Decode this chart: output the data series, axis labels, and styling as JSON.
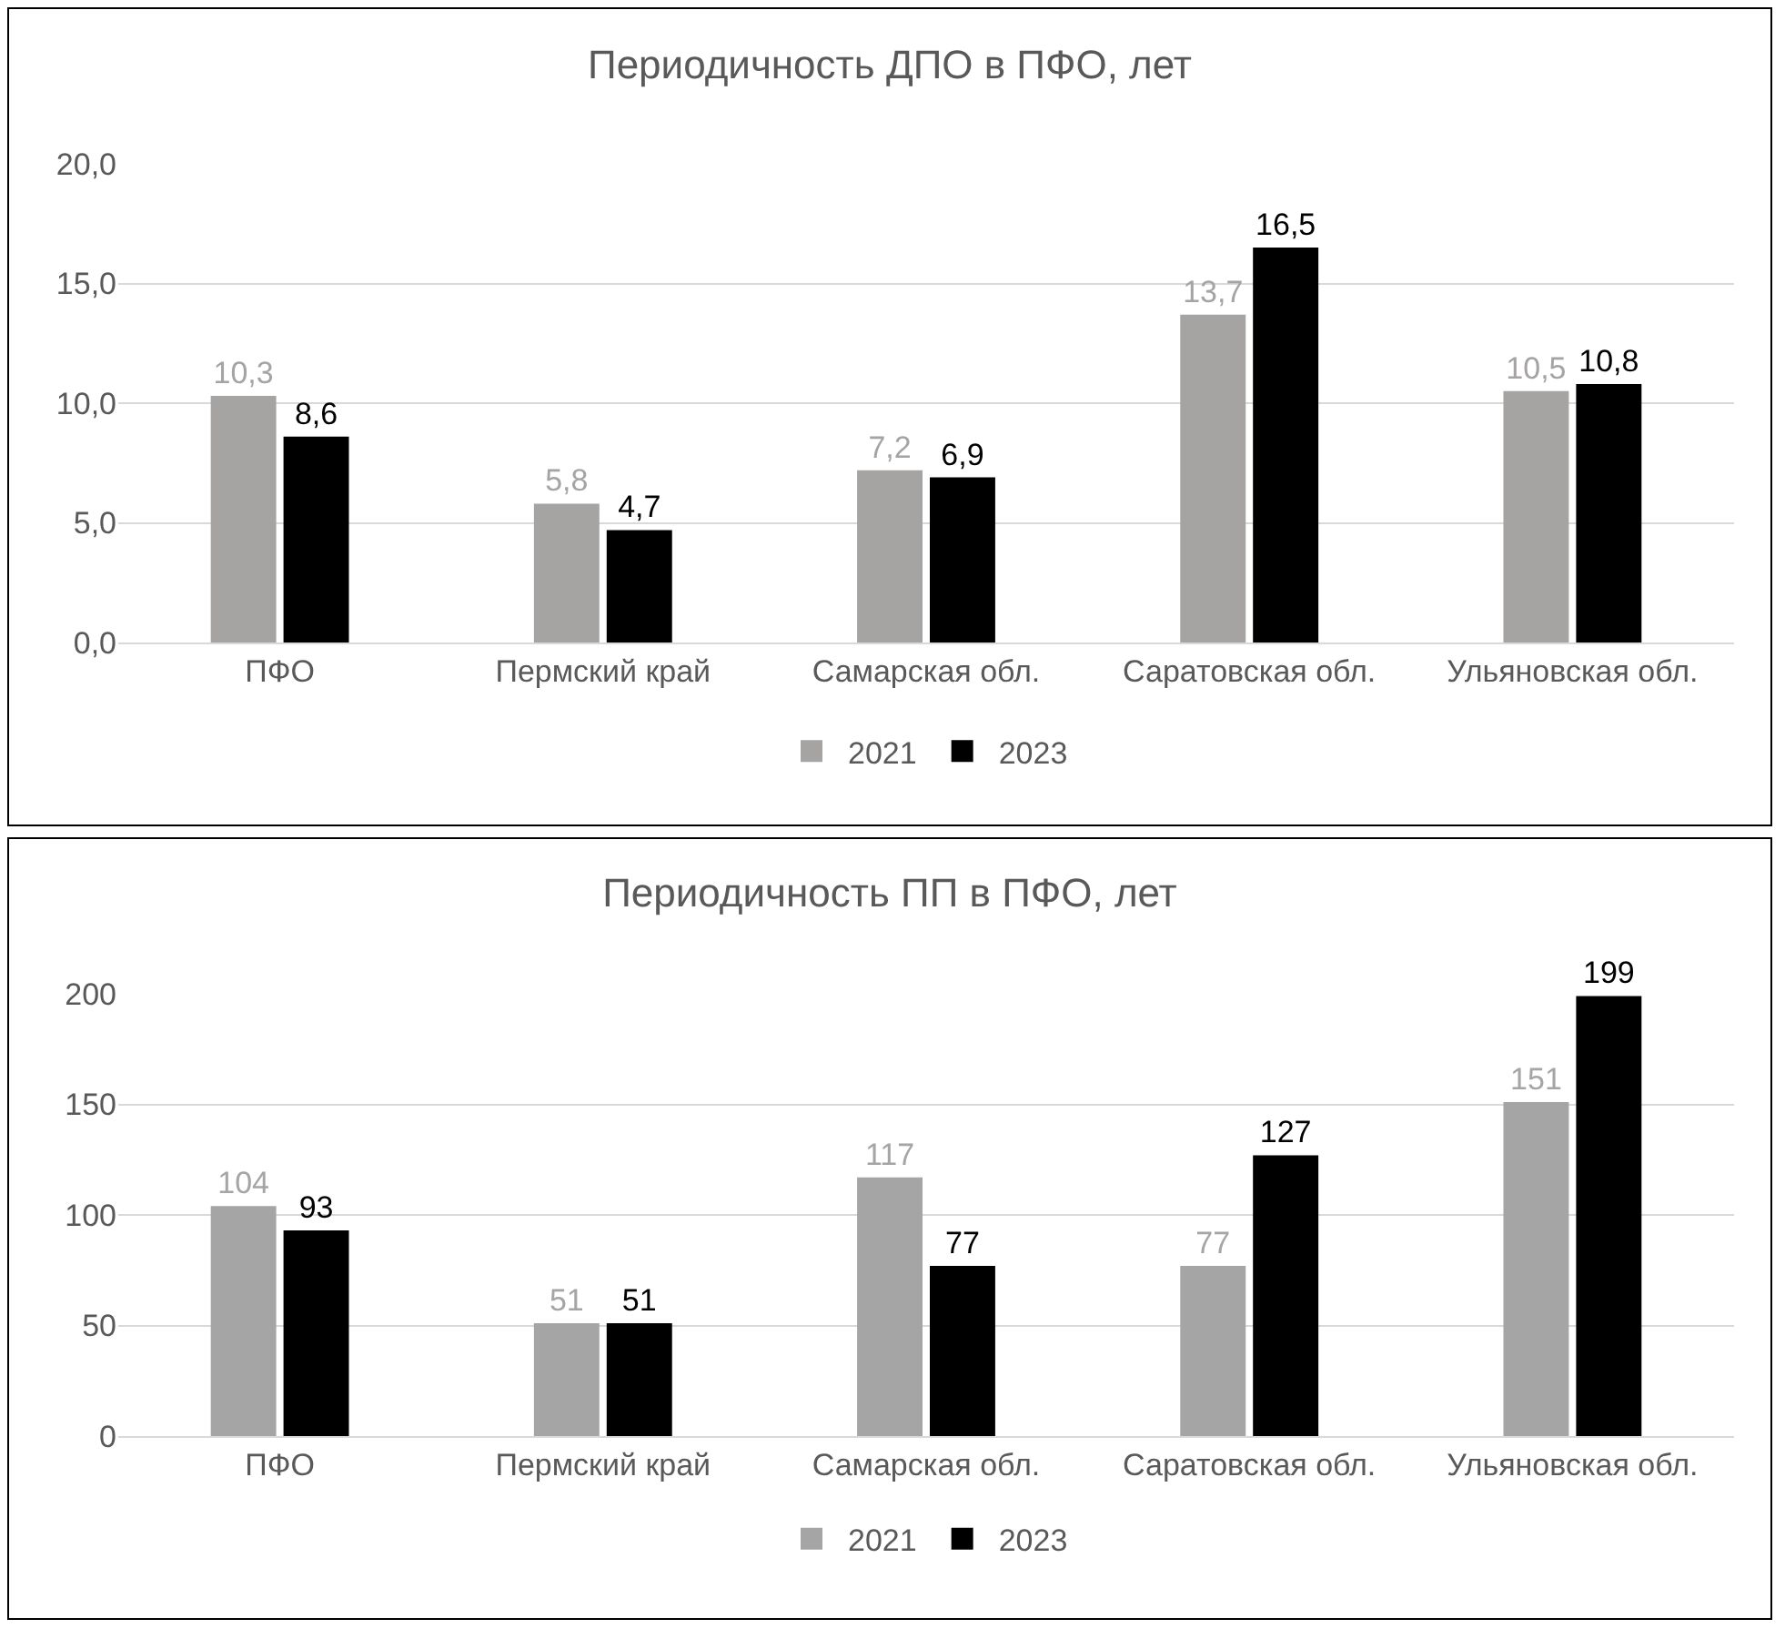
{
  "chart_data": [
    {
      "type": "bar",
      "title": "Периодичность ДПО в ПФО, лет",
      "categories": [
        "ПФО",
        "Пермский край",
        "Самарская обл.",
        "Саратовская обл.",
        "Ульяновская обл."
      ],
      "series": [
        {
          "name": "2021",
          "color": "#a6a3a3",
          "values": [
            10.3,
            5.8,
            7.2,
            13.7,
            10.5
          ],
          "value_labels": [
            "10,3",
            "5,8",
            "7,2",
            "13,7",
            "10,5"
          ]
        },
        {
          "name": "2023",
          "color": "#000000",
          "values": [
            8.6,
            4.7,
            6.9,
            16.5,
            10.8
          ],
          "value_labels": [
            "8,6",
            "4,7",
            "6,9",
            "16,5",
            "10,8"
          ]
        }
      ],
      "ylim": [
        0,
        20
      ],
      "yticks": [
        {
          "value": 0,
          "label": "0,0"
        },
        {
          "value": 5,
          "label": "5,0"
        },
        {
          "value": 10,
          "label": "10,0"
        },
        {
          "value": 15,
          "label": "15,0"
        },
        {
          "value": 20,
          "label": "20,0"
        }
      ],
      "grid": "y",
      "legend": "bottom"
    },
    {
      "type": "bar",
      "title": "Периодичность ПП в ПФО, лет",
      "categories": [
        "ПФО",
        "Пермский край",
        "Самарская обл.",
        "Саратовская обл.",
        "Ульяновская обл."
      ],
      "series": [
        {
          "name": "2021",
          "color": "#a5a5a5",
          "values": [
            104,
            51,
            117,
            77,
            151
          ]
        },
        {
          "name": "2023",
          "color": "#000000",
          "values": [
            93,
            51,
            77,
            127,
            199
          ]
        }
      ],
      "ylim": [
        0,
        200
      ],
      "yticks": [
        0,
        50,
        100,
        150,
        200
      ],
      "grid": "y",
      "legend": "bottom",
      "data_labels": true
    }
  ]
}
